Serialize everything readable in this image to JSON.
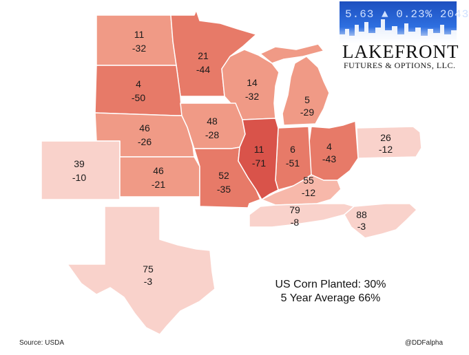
{
  "logo": {
    "ticker": "5.63 ▲ 0.23% 2043",
    "title": "LAKEFRONT",
    "subtitle": "FUTURES & OPTIONS, LLC."
  },
  "summary": {
    "line1": "US Corn Planted: 30%",
    "line2": "5 Year Average 66%"
  },
  "footer": {
    "source": "Source: USDA",
    "handle": "@DDFalpha"
  },
  "colors": {
    "darkest": "#d9534a",
    "dark": "#e77a68",
    "medium": "#f09a86",
    "light": "#f7b8aa",
    "lightest": "#f9d2cb",
    "border": "#ffffff"
  },
  "states": [
    {
      "name": "North Dakota",
      "planted": "11",
      "change": "-32",
      "shade": "medium"
    },
    {
      "name": "Minnesota",
      "planted": "21",
      "change": "-44",
      "shade": "dark"
    },
    {
      "name": "South Dakota",
      "planted": "4",
      "change": "-50",
      "shade": "dark"
    },
    {
      "name": "Wisconsin",
      "planted": "14",
      "change": "-32",
      "shade": "medium"
    },
    {
      "name": "Michigan",
      "planted": "5",
      "change": "-29",
      "shade": "medium"
    },
    {
      "name": "Nebraska",
      "planted": "46",
      "change": "-26",
      "shade": "medium"
    },
    {
      "name": "Iowa",
      "planted": "48",
      "change": "-28",
      "shade": "medium"
    },
    {
      "name": "Illinois",
      "planted": "11",
      "change": "-71",
      "shade": "darkest"
    },
    {
      "name": "Indiana",
      "planted": "6",
      "change": "-51",
      "shade": "dark"
    },
    {
      "name": "Ohio",
      "planted": "4",
      "change": "-43",
      "shade": "dark"
    },
    {
      "name": "Pennsylvania",
      "planted": "26",
      "change": "-12",
      "shade": "lightest"
    },
    {
      "name": "Colorado",
      "planted": "39",
      "change": "-10",
      "shade": "lightest"
    },
    {
      "name": "Kansas",
      "planted": "46",
      "change": "-21",
      "shade": "medium"
    },
    {
      "name": "Missouri",
      "planted": "52",
      "change": "-35",
      "shade": "dark"
    },
    {
      "name": "Kentucky",
      "planted": "55",
      "change": "-12",
      "shade": "light"
    },
    {
      "name": "Tennessee",
      "planted": "79",
      "change": "-8",
      "shade": "lightest"
    },
    {
      "name": "North Carolina",
      "planted": "88",
      "change": "-3",
      "shade": "lightest"
    },
    {
      "name": "Texas",
      "planted": "75",
      "change": "-3",
      "shade": "lightest"
    }
  ]
}
